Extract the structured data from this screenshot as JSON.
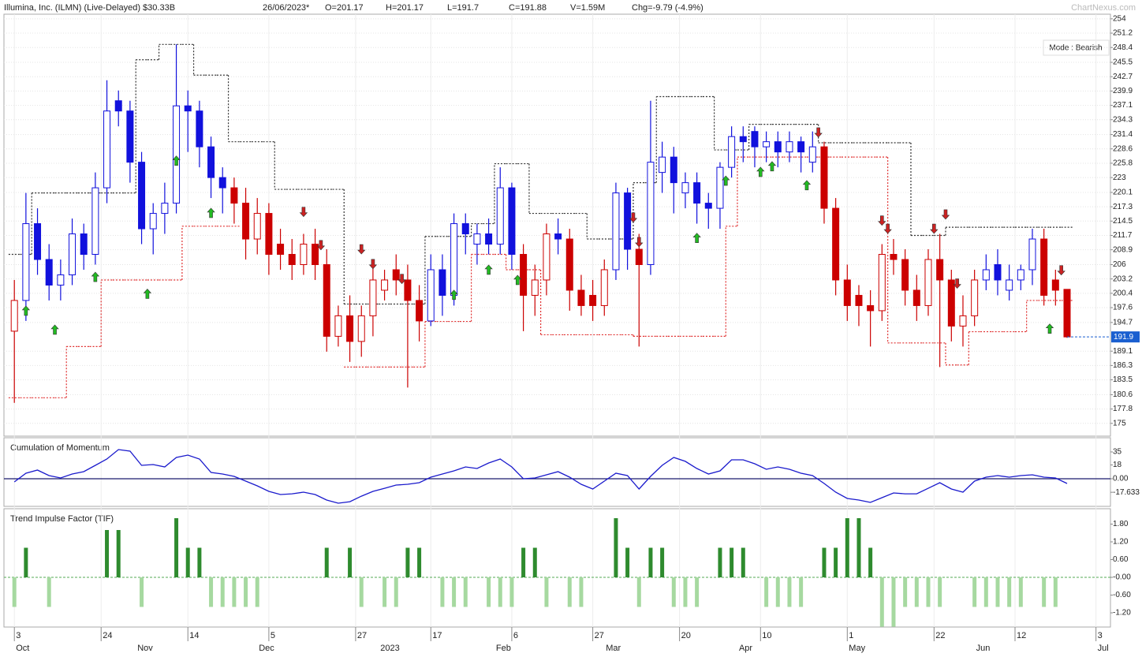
{
  "chart_data": [
    {
      "type": "candlestick",
      "title": "Illumina, Inc. (ILMN) (Live-Delayed) $30.33B",
      "header": [
        "26/06/2023*",
        "O=201.17",
        "H=201.17",
        "L=191.7",
        "C=191.88",
        "V=1.59M",
        "Chg=-9.79 (-4.9%)"
      ],
      "watermark": "ChartNexus.com",
      "mode": "Mode : Bearish",
      "x": [
        0,
        2,
        4,
        6,
        8,
        10,
        12,
        14,
        16,
        18,
        20,
        22,
        24,
        26,
        28,
        30,
        32,
        34,
        36,
        38,
        40,
        42,
        44,
        46,
        48,
        50,
        52,
        54,
        56,
        58,
        60,
        62,
        64,
        66,
        68,
        70,
        72,
        74,
        76,
        78,
        80,
        82,
        84,
        86,
        88,
        90,
        92,
        94,
        96,
        98,
        100,
        102,
        104,
        106,
        108,
        110,
        112,
        114,
        116,
        118,
        120,
        122,
        124,
        126,
        128,
        130,
        132,
        134,
        136,
        138,
        140,
        142,
        144,
        146,
        148,
        150,
        152,
        154,
        156,
        158,
        160,
        162,
        164,
        166,
        168,
        170,
        172,
        174,
        176,
        178,
        180,
        182
      ],
      "open": [
        193,
        199,
        214,
        207,
        202,
        204,
        212,
        208,
        221,
        238,
        236,
        226,
        213,
        216,
        218,
        237,
        236,
        229,
        223,
        221,
        218,
        211,
        216,
        210,
        208,
        206,
        210,
        206,
        192,
        196,
        191,
        196,
        201,
        205,
        203,
        199,
        195,
        205,
        200,
        214,
        210,
        212,
        210,
        221,
        208,
        200,
        203,
        212,
        211,
        201,
        200,
        198,
        205,
        220,
        209,
        206,
        224,
        227,
        220,
        222,
        218,
        217,
        225,
        231,
        232,
        229,
        230,
        228,
        230,
        226,
        229,
        217,
        203,
        200,
        198,
        197,
        208,
        207,
        201,
        198,
        207,
        203,
        194,
        196,
        203,
        206,
        201,
        203,
        205,
        211,
        203,
        201.17
      ],
      "high": [
        203,
        220,
        217,
        210,
        207,
        215,
        214,
        224,
        242,
        240,
        238,
        228,
        218,
        222,
        249,
        240,
        238,
        231,
        225,
        223,
        221,
        219,
        218,
        213,
        211,
        212,
        213,
        209,
        198,
        200,
        198,
        206,
        205,
        208,
        206,
        202,
        208,
        208,
        216,
        216,
        214,
        215,
        225,
        222,
        210,
        206,
        214,
        215,
        213,
        204,
        203,
        207,
        222,
        221,
        212,
        238,
        230,
        229,
        224,
        224,
        220,
        226,
        233,
        233,
        233,
        232,
        232,
        232,
        231,
        232,
        230,
        219,
        206,
        202,
        201,
        210,
        211,
        209,
        204,
        209,
        212,
        205,
        200,
        205,
        208,
        209,
        206,
        206,
        213,
        213,
        205,
        201.17
      ],
      "low": [
        179,
        195,
        204,
        199,
        199,
        202,
        205,
        206,
        218,
        233,
        222,
        210,
        208,
        212,
        216,
        228,
        225,
        219,
        216,
        214,
        207,
        208,
        204,
        205,
        203,
        204,
        203,
        189,
        190,
        187,
        188,
        192,
        199,
        200,
        182,
        191,
        194,
        196,
        198,
        208,
        206,
        208,
        208,
        205,
        193,
        196,
        200,
        208,
        197,
        196,
        195,
        196,
        203,
        205,
        190,
        204,
        220,
        216,
        217,
        214,
        213,
        213,
        223,
        226,
        225,
        226,
        225,
        226,
        224,
        224,
        214,
        200,
        195,
        194,
        190,
        195,
        204,
        198,
        195,
        196,
        186,
        191,
        190,
        194,
        201,
        200,
        199,
        201,
        202,
        198,
        198,
        191.7
      ],
      "close": [
        199,
        214,
        207,
        202,
        204,
        212,
        208,
        221,
        236,
        236,
        226,
        213,
        216,
        218,
        237,
        236,
        229,
        223,
        221,
        218,
        211,
        216,
        208,
        208,
        206,
        210,
        206,
        192,
        196,
        191,
        196,
        203,
        203,
        203,
        199,
        195,
        205,
        200,
        214,
        212,
        212,
        210,
        221,
        208,
        200,
        203,
        212,
        211,
        201,
        198,
        198,
        205,
        220,
        209,
        206,
        226,
        227,
        222,
        222,
        218,
        217,
        225,
        231,
        230,
        229,
        230,
        228,
        230,
        228,
        229,
        217,
        203,
        198,
        198,
        197,
        208,
        207,
        201,
        198,
        207,
        203,
        194,
        196,
        203,
        205,
        203,
        203,
        205,
        211,
        200,
        201,
        191.88
      ],
      "colors": [
        "#c00",
        "#11d",
        "#11d",
        "#11d",
        "#11d",
        "#11d",
        "#11d",
        "#11d",
        "#11d",
        "#11d",
        "#11d",
        "#11d",
        "#11d",
        "#11d",
        "#11d",
        "#11d",
        "#11d",
        "#11d",
        "#11d",
        "#c00",
        "#c00",
        "#c00",
        "#c00",
        "#c00",
        "#c00",
        "#c00",
        "#c00",
        "#c00",
        "#c00",
        "#c00",
        "#c00",
        "#c00",
        "#c00",
        "#c00",
        "#c00",
        "#c00",
        "#11d",
        "#11d",
        "#11d",
        "#11d",
        "#11d",
        "#11d",
        "#11d",
        "#11d",
        "#c00",
        "#c00",
        "#c00",
        "#11d",
        "#c00",
        "#c00",
        "#c00",
        "#c00",
        "#11d",
        "#11d",
        "#c00",
        "#11d",
        "#11d",
        "#11d",
        "#11d",
        "#11d",
        "#11d",
        "#11d",
        "#11d",
        "#11d",
        "#11d",
        "#11d",
        "#11d",
        "#11d",
        "#11d",
        "#11d",
        "#c00",
        "#c00",
        "#c00",
        "#c00",
        "#c00",
        "#c00",
        "#c00",
        "#c00",
        "#c00",
        "#c00",
        "#c00",
        "#c00",
        "#c00",
        "#c00",
        "#11d",
        "#11d",
        "#11d",
        "#11d",
        "#11d",
        "#c00",
        "#c00",
        "#c00"
      ],
      "up_fill": "#ffffff",
      "upper_stop": [
        208,
        208,
        220,
        220,
        220,
        220,
        220,
        220,
        220,
        220,
        220,
        246,
        246,
        249,
        249,
        249,
        243,
        243,
        243,
        230,
        230,
        230,
        230,
        220.7,
        220.7,
        220.7,
        220.7,
        220.7,
        220.7,
        198.3,
        198.3,
        198.3,
        198.3,
        198.3,
        198.3,
        198.3,
        211.5,
        211.5,
        211.5,
        211.5,
        214,
        214,
        225.7,
        225.7,
        225.7,
        216,
        216,
        216,
        216,
        216,
        211,
        211,
        211,
        211,
        222,
        222,
        238.8,
        238.8,
        238.8,
        238.8,
        238.8,
        228.4,
        228.4,
        228.4,
        233.4,
        233.4,
        233.4,
        233.4,
        233.4,
        233.4,
        229.8,
        229.8,
        229.8,
        229.8,
        229.8,
        229.8,
        229.8,
        229.8,
        211.7,
        211.7,
        211.7,
        213.3,
        213.3,
        213.3,
        213.3,
        213.3,
        213.3,
        213.3,
        213.3,
        213.3,
        213.3,
        213.3
      ],
      "upper_stop_color": "#333333",
      "lower_stop": [
        180,
        180,
        180,
        180,
        180,
        190,
        190,
        190,
        203,
        203,
        203,
        203,
        203,
        203,
        203,
        213.5,
        213.5,
        213.5,
        213.5,
        213.5,
        null,
        null,
        null,
        null,
        null,
        null,
        null,
        null,
        null,
        186,
        186,
        186,
        186,
        186,
        186,
        186,
        194.9,
        194.9,
        194.9,
        194.9,
        208,
        208,
        208,
        205,
        205,
        205,
        192.3,
        192.3,
        192.3,
        192.3,
        192.3,
        192.3,
        192.3,
        192.3,
        192,
        192,
        192,
        192,
        192,
        192,
        192,
        192,
        213.5,
        227,
        227,
        227,
        227,
        227,
        227,
        227,
        227,
        227,
        227,
        227,
        227,
        227,
        190.7,
        190.7,
        190.7,
        190.7,
        190.7,
        186.4,
        186.4,
        192.9,
        192.9,
        192.9,
        192.9,
        192.9,
        199,
        199,
        199,
        199
      ],
      "lower_stop_color": "#e03030",
      "buy_signals": {
        "x": [
          2,
          7,
          14,
          23,
          28,
          34,
          76,
          82,
          87,
          118,
          123,
          129,
          131,
          137,
          179
        ],
        "y": [
          197,
          193.3,
          203.6,
          200.3,
          226.3,
          216.1,
          200.1,
          205,
          203,
          211.2,
          222.4,
          224.1,
          225.2,
          221.5,
          193.5
        ],
        "color": "#22bb22"
      },
      "sell_signals": {
        "x": [
          50,
          53,
          60,
          62,
          67,
          107,
          108,
          139,
          150,
          151,
          159,
          161,
          163,
          181
        ],
        "y": [
          216.3,
          209.8,
          209,
          206.1,
          203.2,
          215.2,
          210.4,
          231.8,
          214.6,
          213,
          213,
          215.8,
          202.3,
          204.9
        ],
        "color": "#cc2222"
      },
      "last_price": {
        "value": 191.88,
        "label": "191.9"
      },
      "last_price_color": "#1a5fd0",
      "xlim": [
        -1.8,
        189.5
      ],
      "ylim": [
        172.5,
        254.9
      ],
      "yticks": [
        254,
        251.2,
        248.4,
        245.5,
        242.7,
        239.9,
        237.1,
        234.3,
        231.4,
        228.6,
        225.8,
        223,
        220.1,
        217.3,
        214.5,
        211.7,
        208.9,
        206,
        203.2,
        200.4,
        197.6,
        194.7,
        189.1,
        186.3,
        183.5,
        180.6,
        177.8,
        175
      ],
      "grid": true
    },
    {
      "type": "line",
      "title": "Cumulation of Momentum",
      "color": "#1a1acc",
      "zero_line_color": "#1a1a6e",
      "values": [
        -4.1,
        7.2,
        11.3,
        4.1,
        1,
        6.2,
        9.3,
        17.5,
        25.7,
        38.1,
        36,
        17.5,
        18.5,
        15.4,
        27.8,
        30.9,
        25.7,
        8.2,
        6.2,
        3.1,
        -3.1,
        -9.3,
        -16.5,
        -20.6,
        -19.6,
        -17.5,
        -20.6,
        -27.8,
        -31.9,
        -29.9,
        -22.7,
        -16.5,
        -12.4,
        -8.2,
        -7.2,
        -5.1,
        2.1,
        6.2,
        10.3,
        15.4,
        13.4,
        20.6,
        25.7,
        15.4,
        0,
        1,
        5.1,
        9.3,
        2.1,
        -7.2,
        -13.4,
        -3.1,
        7.2,
        4.1,
        -13.4,
        3.1,
        17.5,
        27.8,
        22.7,
        13.4,
        6.2,
        10.3,
        24.7,
        24.7,
        19.6,
        12.4,
        15.4,
        12.4,
        7.2,
        4.1,
        -6.2,
        -17.5,
        -25.7,
        -27.8,
        -30.9,
        -24.7,
        -18.5,
        -19.6,
        -19.6,
        -12.4,
        -5.1,
        -13.4,
        -17.5,
        -3.1,
        2.1,
        4.1,
        2.1,
        4.1,
        5.1,
        2.1,
        1,
        -6.2
      ],
      "ylim": [
        -36,
        53.5
      ],
      "yticks": [
        35,
        18,
        {
          "value": 0,
          "label": "0.00"
        },
        -17.633
      ]
    },
    {
      "type": "bar",
      "title": "Trend Impulse Factor (TIF)",
      "positive_color": "#2e8b2e",
      "negative_color": "#a6d9a0",
      "zero_line_color": "#55aa55",
      "values": [
        -1,
        1,
        0,
        -1,
        0,
        0,
        0,
        0,
        1.6,
        1.6,
        0,
        -1,
        0,
        0,
        2,
        1,
        1,
        -1,
        -1,
        -1,
        -1,
        -1,
        0,
        0,
        0,
        0,
        0,
        1,
        0,
        1,
        -1,
        0,
        -1,
        -1,
        1,
        1,
        0,
        -1,
        -1,
        -1,
        0,
        -1,
        -1,
        -1,
        1,
        1,
        -1,
        0,
        -1,
        -1,
        0,
        0,
        2,
        1,
        -1,
        1,
        1,
        -1,
        -1,
        -1,
        0,
        1,
        1,
        1,
        0,
        -1,
        -1,
        -1,
        -1,
        0,
        1,
        1,
        2,
        2,
        1,
        -1.67,
        -1.67,
        -1,
        -1,
        -1,
        -1,
        0,
        0,
        -1,
        -1,
        -1,
        -1,
        -1,
        0,
        -1,
        -1,
        0
      ],
      "ylim": [
        -1.68,
        2.32
      ],
      "yticks": [
        {
          "value": 1.8,
          "label": "1.80"
        },
        {
          "value": 1.2,
          "label": "1.20"
        },
        {
          "value": 0.6,
          "label": "0.60"
        },
        {
          "value": 0,
          "label": "-0.00"
        },
        {
          "value": -0.6,
          "label": "-0.60"
        },
        {
          "value": -1.2,
          "label": "-1.20"
        }
      ],
      "xticks": [
        {
          "value": 0,
          "label": "3"
        },
        {
          "value": 15,
          "label": "24"
        },
        {
          "value": 30,
          "label": "14"
        },
        {
          "value": 44,
          "label": "5"
        },
        {
          "value": 59,
          "label": "27"
        },
        {
          "value": 72,
          "label": "17"
        },
        {
          "value": 86,
          "label": "6"
        },
        {
          "value": 100,
          "label": "27"
        },
        {
          "value": 115,
          "label": "20"
        },
        {
          "value": 129,
          "label": "10"
        },
        {
          "value": 144,
          "label": "1"
        },
        {
          "value": 159,
          "label": "22"
        },
        {
          "value": 173,
          "label": "12"
        },
        {
          "value": 187,
          "label": "3"
        }
      ],
      "month_ticks": [
        {
          "value": 0,
          "label": "Oct"
        },
        {
          "value": 21,
          "label": "Nov"
        },
        {
          "value": 42,
          "label": "Dec"
        },
        {
          "value": 63,
          "label": "2023"
        },
        {
          "value": 83,
          "label": "Feb"
        },
        {
          "value": 102,
          "label": "Mar"
        },
        {
          "value": 125,
          "label": "Apr"
        },
        {
          "value": 144,
          "label": "May"
        },
        {
          "value": 166,
          "label": "Jun"
        },
        {
          "value": 187,
          "label": "Jul"
        }
      ]
    }
  ]
}
